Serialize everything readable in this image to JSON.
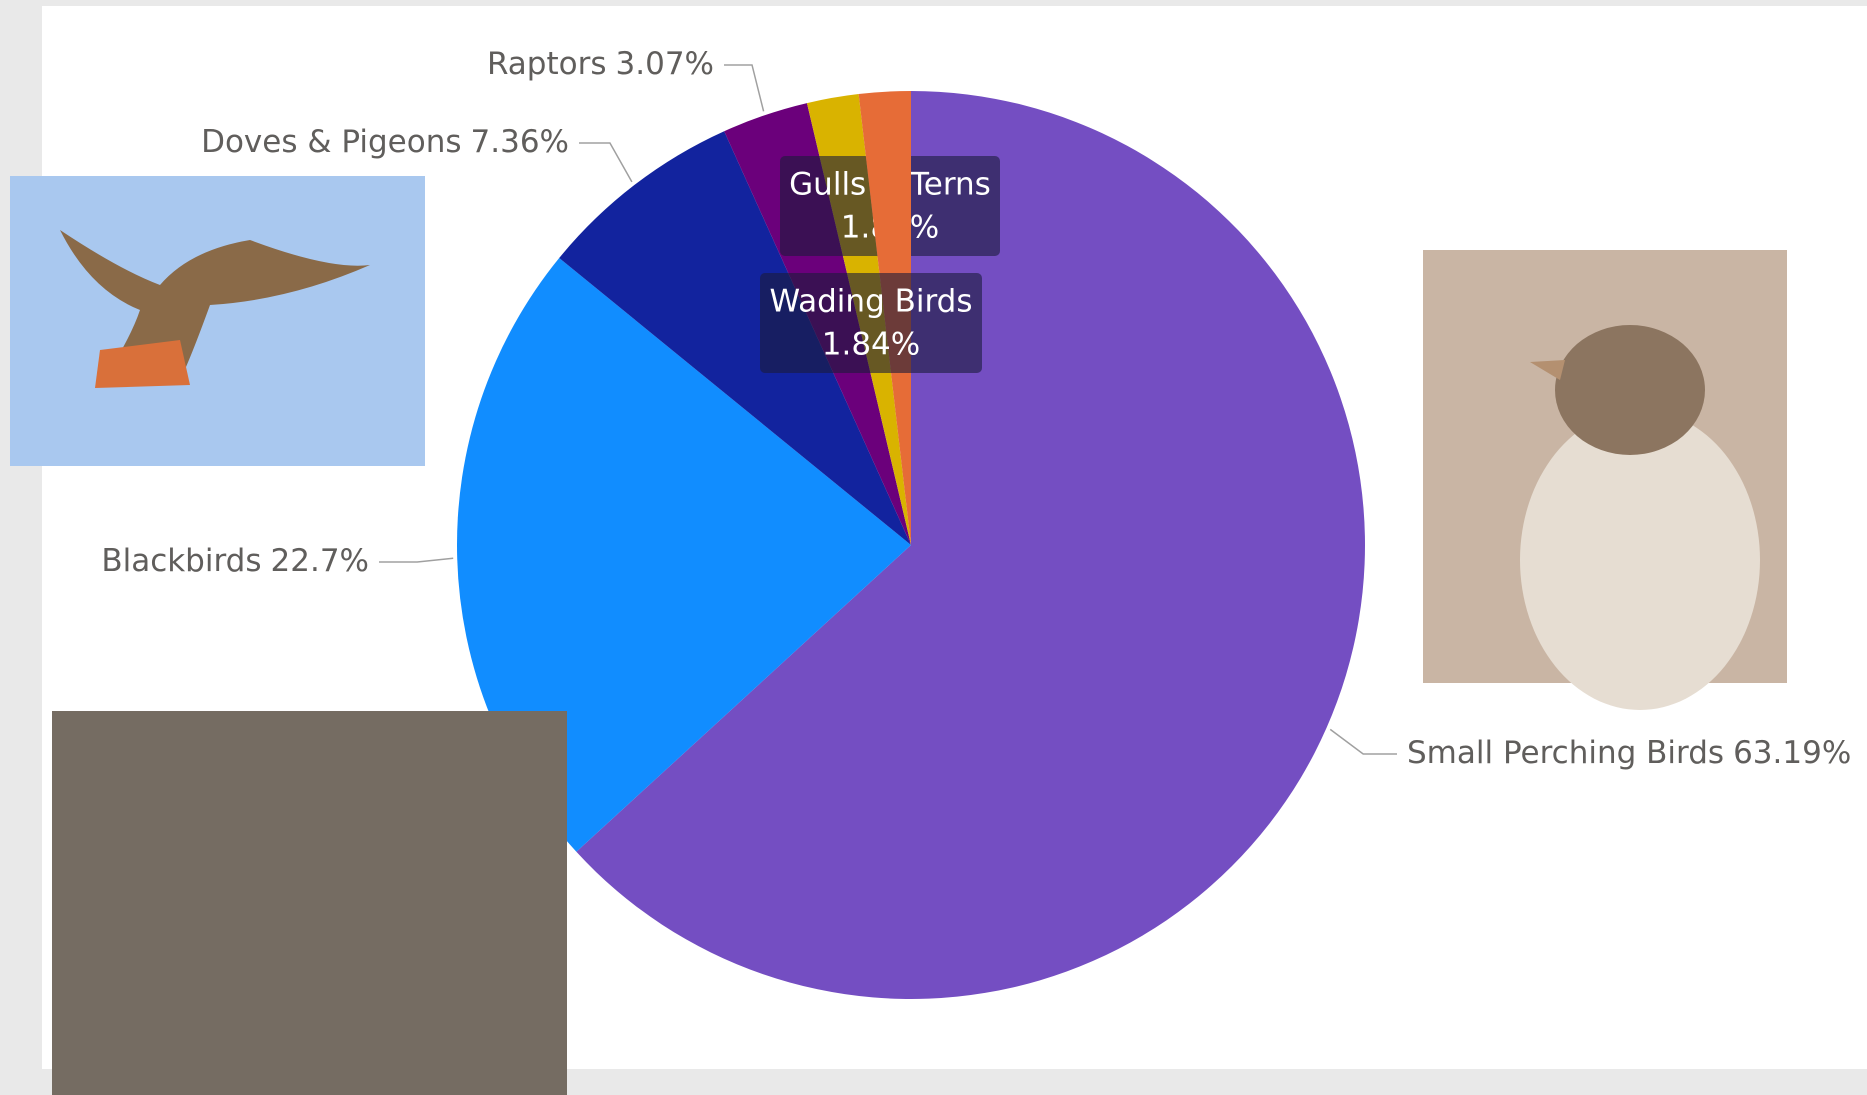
{
  "chart_data": {
    "type": "pie",
    "categories": [
      "Small Perching Birds",
      "Blackbirds",
      "Doves & Pigeons",
      "Raptors",
      "Gulls & Terns",
      "Wading Birds"
    ],
    "values": [
      63.19,
      22.7,
      7.36,
      3.07,
      1.84,
      1.84
    ],
    "value_labels": [
      "63.19%",
      "22.7%",
      "7.36%",
      "3.07%",
      "1.84%",
      "1.84%"
    ],
    "colors": [
      "#744EC2",
      "#118DFF",
      "#12239E",
      "#6B007B",
      "#D9B300",
      "#E66C37"
    ]
  }
}
